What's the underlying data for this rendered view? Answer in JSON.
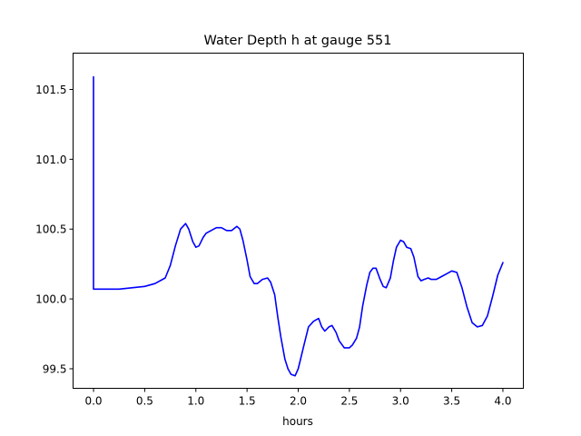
{
  "chart_data": {
    "type": "line",
    "title": "Water Depth h at gauge 551",
    "xlabel": "hours",
    "ylabel": "",
    "xlim": [
      -0.2,
      4.2
    ],
    "ylim": [
      99.36,
      101.76
    ],
    "x_ticks": [
      0.0,
      0.5,
      1.0,
      1.5,
      2.0,
      2.5,
      3.0,
      3.5,
      4.0
    ],
    "x_tick_labels": [
      "0.0",
      "0.5",
      "1.0",
      "1.5",
      "2.0",
      "2.5",
      "3.0",
      "3.5",
      "4.0"
    ],
    "y_ticks": [
      99.5,
      100.0,
      100.5,
      101.0,
      101.5
    ],
    "y_tick_labels": [
      "99.5",
      "100.0",
      "100.5",
      "101.0",
      "101.5"
    ],
    "grid": false,
    "legend": "none",
    "series": [
      {
        "color": "#0000ff",
        "x": [
          0.0,
          0.0,
          0.25,
          0.5,
          0.6,
          0.7,
          0.75,
          0.8,
          0.85,
          0.9,
          0.93,
          0.97,
          1.0,
          1.03,
          1.07,
          1.1,
          1.2,
          1.25,
          1.3,
          1.35,
          1.4,
          1.43,
          1.46,
          1.5,
          1.53,
          1.57,
          1.6,
          1.65,
          1.7,
          1.73,
          1.77,
          1.8,
          1.83,
          1.87,
          1.9,
          1.93,
          1.97,
          2.0,
          2.05,
          2.1,
          2.15,
          2.2,
          2.23,
          2.26,
          2.3,
          2.33,
          2.37,
          2.4,
          2.45,
          2.5,
          2.53,
          2.57,
          2.6,
          2.63,
          2.67,
          2.7,
          2.73,
          2.76,
          2.8,
          2.83,
          2.86,
          2.9,
          2.93,
          2.96,
          3.0,
          3.03,
          3.06,
          3.1,
          3.13,
          3.17,
          3.2,
          3.23,
          3.27,
          3.3,
          3.35,
          3.4,
          3.45,
          3.5,
          3.55,
          3.6,
          3.65,
          3.7,
          3.75,
          3.8,
          3.85,
          3.9,
          3.95,
          4.0
        ],
        "y": [
          101.59,
          100.07,
          100.07,
          100.09,
          100.11,
          100.15,
          100.24,
          100.38,
          100.5,
          100.54,
          100.5,
          100.41,
          100.37,
          100.38,
          100.44,
          100.47,
          100.51,
          100.51,
          100.49,
          100.49,
          100.52,
          100.5,
          100.42,
          100.28,
          100.16,
          100.11,
          100.11,
          100.14,
          100.15,
          100.12,
          100.03,
          99.87,
          99.73,
          99.57,
          99.5,
          99.46,
          99.45,
          99.5,
          99.65,
          99.8,
          99.84,
          99.86,
          99.8,
          99.77,
          99.8,
          99.81,
          99.76,
          99.7,
          99.65,
          99.65,
          99.67,
          99.72,
          99.8,
          99.95,
          100.1,
          100.19,
          100.22,
          100.22,
          100.14,
          100.09,
          100.08,
          100.15,
          100.27,
          100.37,
          100.42,
          100.41,
          100.37,
          100.36,
          100.3,
          100.16,
          100.13,
          100.14,
          100.15,
          100.14,
          100.14,
          100.16,
          100.18,
          100.2,
          100.19,
          100.08,
          99.94,
          99.83,
          99.8,
          99.81,
          99.88,
          100.02,
          100.17,
          100.26
        ]
      }
    ]
  }
}
